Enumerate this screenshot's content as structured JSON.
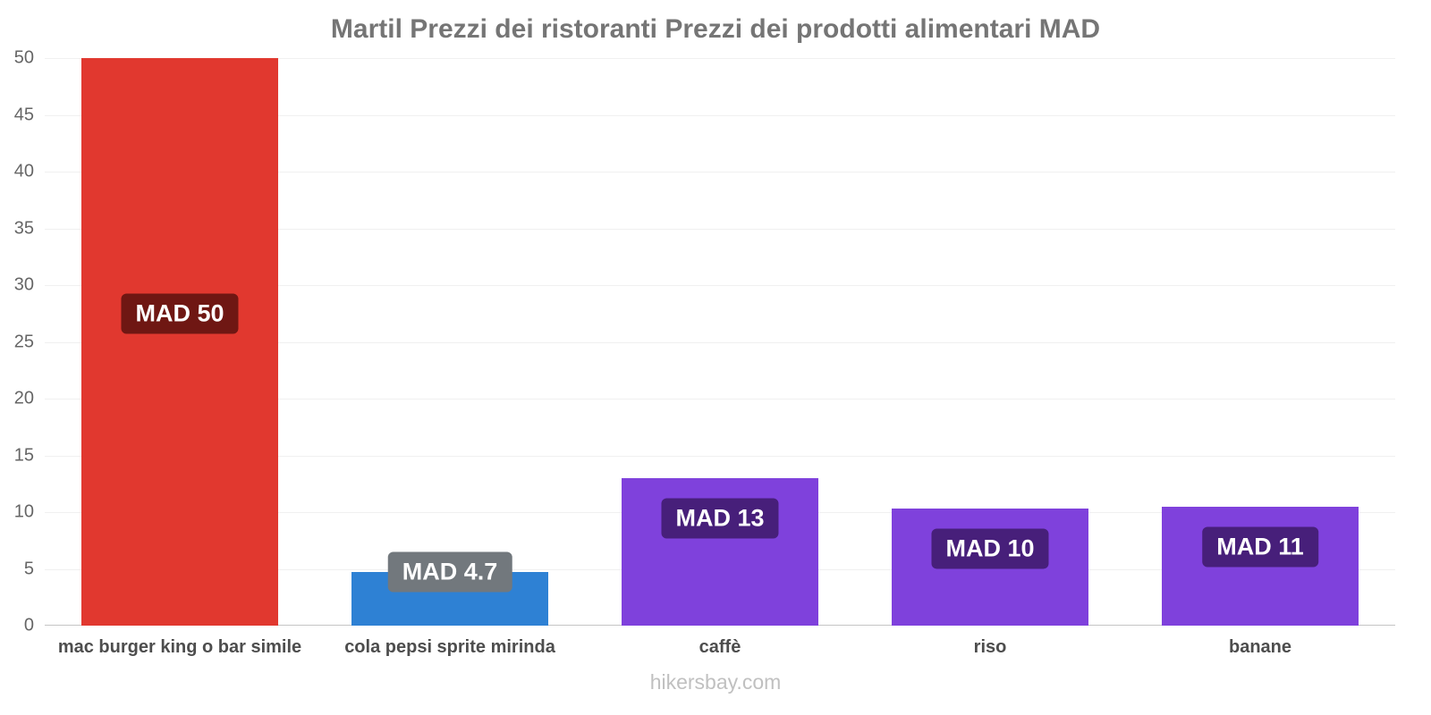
{
  "title": "Martil Prezzi dei ristoranti Prezzi dei prodotti alimentari MAD",
  "footer": "hikersbay.com",
  "chart_data": {
    "type": "bar",
    "title": "Martil Prezzi dei ristoranti Prezzi dei prodotti alimentari MAD",
    "categories": [
      "mac burger king o bar simile",
      "cola pepsi sprite mirinda",
      "caffè",
      "riso",
      "banane"
    ],
    "values": [
      50,
      4.7,
      13,
      10.3,
      10.5
    ],
    "value_labels": [
      "MAD 50",
      "MAD 4.7",
      "MAD 13",
      "MAD 10",
      "MAD 11"
    ],
    "bar_colors": [
      "#e1382f",
      "#2e81d4",
      "#7f41dc",
      "#7f41dc",
      "#7f41dc"
    ],
    "value_label_colors": [
      "#6f1713",
      "#72787d",
      "#471f7a",
      "#471f7a",
      "#471f7a"
    ],
    "xlabel": "",
    "ylabel": "",
    "ylim": [
      0,
      50
    ],
    "yticks": [
      0,
      5,
      10,
      15,
      20,
      25,
      30,
      35,
      40,
      45,
      50
    ],
    "grid": true,
    "legend": false,
    "currency": "MAD"
  }
}
